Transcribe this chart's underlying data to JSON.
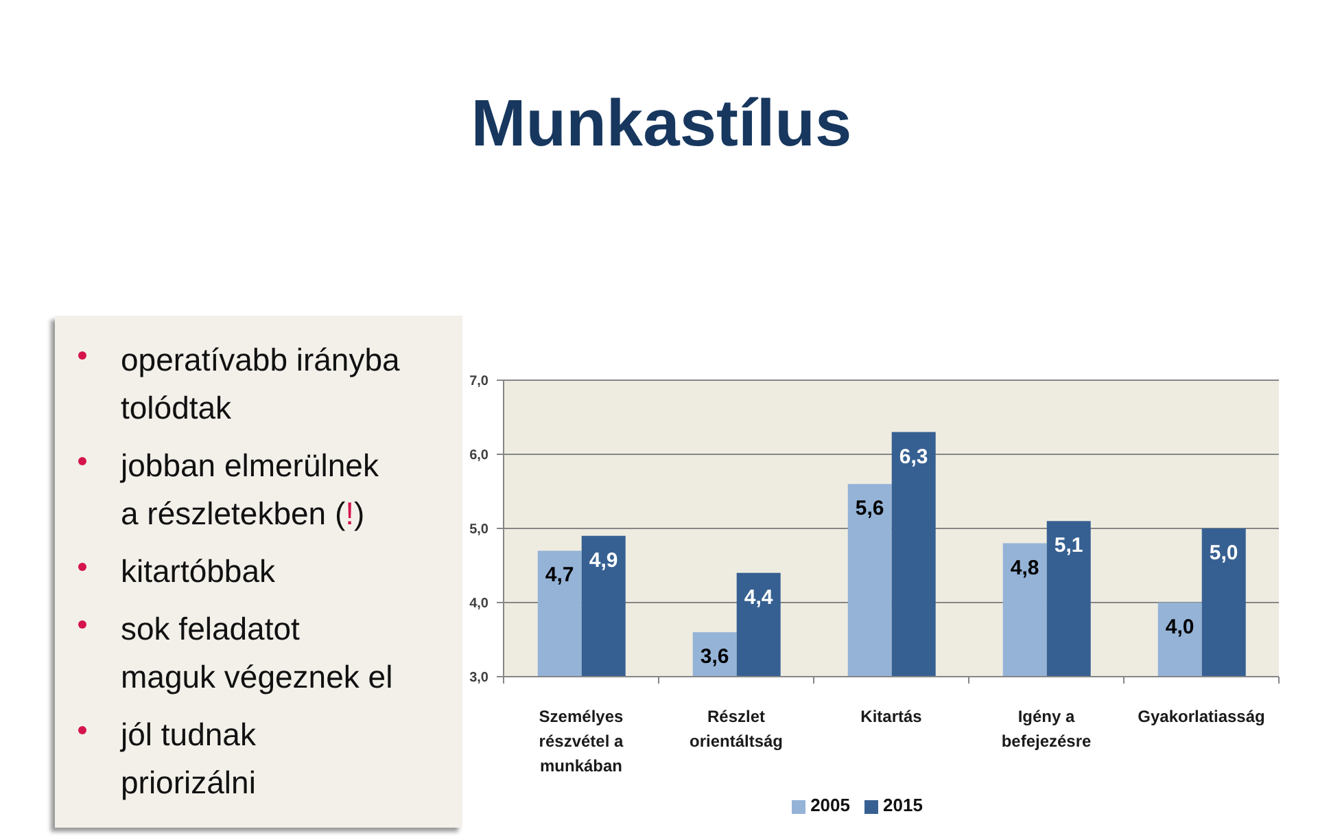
{
  "chart_data": [
    {
      "type": "other",
      "annotations": [
        "operatívabb irányba\ntolódtak",
        "jobban elmerülnek\na részletekben (!)",
        "kitartóbbak",
        "sok feladatot\nmaguk végeznek el",
        "jól tudnak\npriorizálni"
      ]
    },
    {
      "type": "bar",
      "title": "Munkastílus",
      "categories": [
        "Személyes részvétel a munkában",
        "Részlet orientáltság",
        "Kitartás",
        "Igény a befejezésre",
        "Gyakorlatiasság"
      ],
      "series": [
        {
          "name": "2005",
          "color": "#95b3d7",
          "values": [
            4.7,
            3.6,
            5.6,
            4.8,
            4.0
          ],
          "value_labels": [
            "4,7",
            "3,6",
            "5,6",
            "4,8",
            "4,0"
          ]
        },
        {
          "name": "2015",
          "color": "#376092",
          "values": [
            4.9,
            4.4,
            6.3,
            5.1,
            5.0
          ],
          "value_labels": [
            "4,9",
            "4,4",
            "6,3",
            "5,1",
            "5,0"
          ]
        }
      ],
      "ylim": [
        3,
        7
      ],
      "yticks": [
        {
          "value": 3,
          "label": "3,0"
        },
        {
          "value": 4,
          "label": "4,0"
        },
        {
          "value": 5,
          "label": "5,0"
        },
        {
          "value": 6,
          "label": "6,0"
        },
        {
          "value": 7,
          "label": "7,0"
        }
      ],
      "grid": "y",
      "legend": "bottom"
    }
  ]
}
